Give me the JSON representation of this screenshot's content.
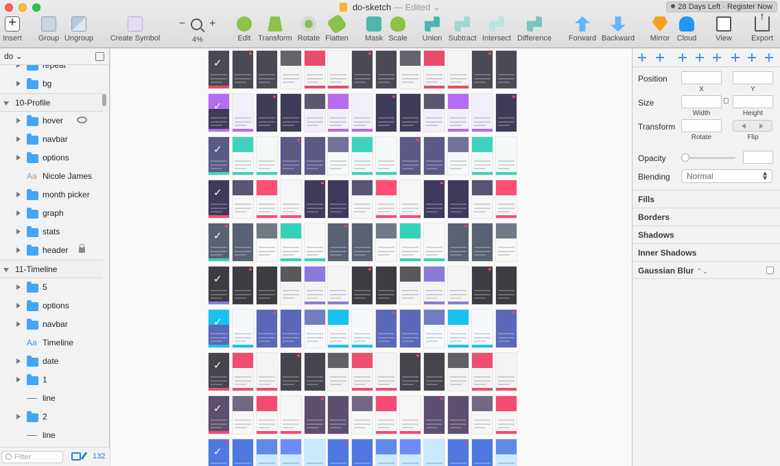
{
  "window": {
    "title": "do-sketch",
    "title_sep": "—",
    "status": "Edited ⌄",
    "trial": {
      "days": "28 Days Left",
      "sep": "·",
      "action": "Register Now"
    }
  },
  "toolbar": {
    "insert": "Insert",
    "group": "Group",
    "ungroup": "Ungroup",
    "create_symbol": "Create Symbol",
    "zoom_minus": "−",
    "zoom_plus": "+",
    "zoom_value": "4%",
    "edit": "Edit",
    "transform": "Transform",
    "rotate": "Rotate",
    "flatten": "Flatten",
    "mask": "Mask",
    "scale": "Scale",
    "union": "Union",
    "subtract": "Subtract",
    "intersect": "Intersect",
    "difference": "Difference",
    "forward": "Forward",
    "backward": "Backward",
    "mirror": "Mirror",
    "cloud": "Cloud",
    "view": "View",
    "export": "Export"
  },
  "layers_panel": {
    "page": "do",
    "filter_placeholder": "Filter",
    "count": "132",
    "items": [
      {
        "kind": "folder",
        "name": "repeat"
      },
      {
        "kind": "folder",
        "name": "bg"
      },
      {
        "kind": "group",
        "name": "10-Profile"
      },
      {
        "kind": "folder",
        "name": "hover",
        "badge": "eye-icon"
      },
      {
        "kind": "folder",
        "name": "navbar"
      },
      {
        "kind": "folder",
        "name": "options"
      },
      {
        "kind": "text",
        "name": "Nicole James"
      },
      {
        "kind": "folder",
        "name": "month picker"
      },
      {
        "kind": "folder",
        "name": "graph"
      },
      {
        "kind": "folder",
        "name": "stats"
      },
      {
        "kind": "folder",
        "name": "header",
        "badge": "lock-icon"
      },
      {
        "kind": "group",
        "name": "11-Timeline"
      },
      {
        "kind": "folder",
        "name": "5"
      },
      {
        "kind": "folder",
        "name": "options"
      },
      {
        "kind": "folder",
        "name": "navbar"
      },
      {
        "kind": "text",
        "name": "Timeline",
        "highlight": true
      },
      {
        "kind": "folder",
        "name": "date"
      },
      {
        "kind": "folder",
        "name": "1"
      },
      {
        "kind": "line",
        "name": "line"
      },
      {
        "kind": "folder",
        "name": "2"
      },
      {
        "kind": "line",
        "name": "line"
      }
    ]
  },
  "canvas": {
    "row_themes": [
      {
        "accent": "#e94b6a",
        "dark": "#4a4a55",
        "light": "#f4f4f4"
      },
      {
        "accent": "#b46df0",
        "dark": "#3e3c58",
        "light": "#f3effa"
      },
      {
        "accent": "#3fd3bd",
        "dark": "#5b5a86",
        "light": "#f4f8f8"
      },
      {
        "accent": "#ff4d74",
        "dark": "#3d3a5c",
        "light": "#f6f6f8"
      },
      {
        "accent": "#34d3b8",
        "dark": "#596172",
        "light": "#f7f7f7"
      },
      {
        "accent": "#8b7ad9",
        "dark": "#3c3c42",
        "light": "#f4f4f4"
      },
      {
        "accent": "#18c2ef",
        "dark": "#5b67b8",
        "light": "#f6f9fc"
      },
      {
        "accent": "#ee4f6e",
        "dark": "#45454d",
        "light": "#f3f3f3"
      },
      {
        "accent": "#f54b72",
        "dark": "#5d4f6f",
        "light": "#f6f6f6"
      },
      {
        "accent": "#6e8cf7",
        "dark": "#4f79e0",
        "light": "#c9e9ff"
      }
    ]
  },
  "inspector": {
    "position": "Position",
    "x": "X",
    "y": "Y",
    "size": "Size",
    "width": "Width",
    "height": "Height",
    "transform": "Transform",
    "rotate": "Rotate",
    "flip": "Flip",
    "opacity": "Opacity",
    "blending": "Blending",
    "blending_value": "Normal",
    "sections": {
      "fills": "Fills",
      "borders": "Borders",
      "shadows": "Shadows",
      "inner_shadows": "Inner Shadows",
      "gaussian_blur": "Gaussian Blur"
    }
  }
}
